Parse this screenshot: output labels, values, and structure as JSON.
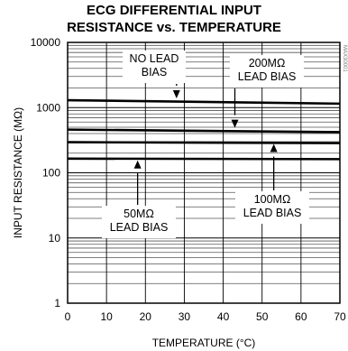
{
  "chart_data": {
    "type": "line",
    "title": "ECG DIFFERENTIAL INPUT",
    "subtitle": "RESISTANCE vs. TEMPERATURE",
    "xlabel": "TEMPERATURE (°C)",
    "ylabel": "INPUT RESISTANCE (MΩ)",
    "xlim": [
      0,
      70
    ],
    "ylim": [
      1,
      10000
    ],
    "y_scale": "log",
    "grid": true,
    "x_ticks": [
      "0",
      "10",
      "20",
      "30",
      "40",
      "50",
      "60",
      "70"
    ],
    "y_ticks": [
      "1",
      "10",
      "100",
      "1000",
      "10000"
    ],
    "series": [
      {
        "x": [
          0,
          70
        ],
        "y": [
          1300,
          1150
        ]
      },
      {
        "x": [
          0,
          70
        ],
        "y": [
          460,
          420
        ]
      },
      {
        "x": [
          0,
          70
        ],
        "y": [
          295,
          285
        ]
      },
      {
        "x": [
          0,
          70
        ],
        "y": [
          165,
          162
        ]
      }
    ],
    "annotations": [
      {
        "lines": [
          "NO LEAD",
          "BIAS"
        ],
        "target_x": 28,
        "target_y": 1300
      },
      {
        "lines": [
          "200MΩ",
          "LEAD BIAS"
        ],
        "target_x": 43,
        "target_y": 460
      },
      {
        "lines": [
          "50MΩ",
          "LEAD BIAS"
        ],
        "target_x": 18,
        "target_y": 165
      },
      {
        "lines": [
          "100MΩ",
          "LEAD BIAS"
        ],
        "target_x": 53,
        "target_y": 295
      }
    ],
    "side_mark": "MAX30001"
  }
}
